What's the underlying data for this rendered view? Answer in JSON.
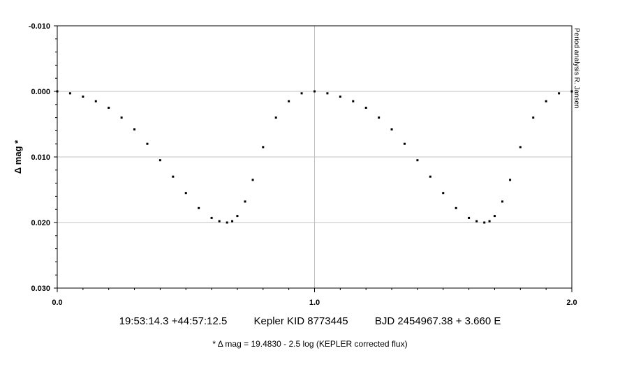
{
  "chart_data": {
    "type": "scatter",
    "ylabel": "Δ mag *",
    "x_ticks": [
      "0.0",
      "1.0",
      "2.0"
    ],
    "y_ticks": [
      "-0.010",
      "0.000",
      "0.010",
      "0.020",
      "0.030"
    ],
    "xlim": [
      0,
      2
    ],
    "ylim": [
      -0.01,
      0.03
    ],
    "y_inverted": true,
    "grid": true,
    "series": [
      {
        "marker_color": "#000000",
        "x": [
          0.0,
          0.05,
          0.1,
          0.15,
          0.2,
          0.25,
          0.3,
          0.35,
          0.4,
          0.45,
          0.5,
          0.55,
          0.6,
          0.63,
          0.66,
          0.68,
          0.7,
          0.73,
          0.76,
          0.8,
          0.85,
          0.9,
          0.95,
          1.0,
          1.05,
          1.1,
          1.15,
          1.2,
          1.25,
          1.3,
          1.35,
          1.4,
          1.45,
          1.5,
          1.55,
          1.6,
          1.63,
          1.66,
          1.68,
          1.7,
          1.73,
          1.76,
          1.8,
          1.85,
          1.9,
          1.95,
          2.0
        ],
        "y": [
          0.0,
          0.0003,
          0.0008,
          0.0015,
          0.0025,
          0.004,
          0.0058,
          0.008,
          0.0105,
          0.013,
          0.0155,
          0.0178,
          0.0193,
          0.0198,
          0.02,
          0.0198,
          0.019,
          0.0168,
          0.0135,
          0.0085,
          0.004,
          0.0015,
          0.0003,
          0.0,
          0.0003,
          0.0008,
          0.0015,
          0.0025,
          0.004,
          0.0058,
          0.008,
          0.0105,
          0.013,
          0.0155,
          0.0178,
          0.0193,
          0.0198,
          0.02,
          0.0198,
          0.019,
          0.0168,
          0.0135,
          0.0085,
          0.004,
          0.0015,
          0.0003,
          0.0
        ]
      }
    ]
  },
  "caption": {
    "coords": "19:53:14.3 +44:57:12.5",
    "target": "Kepler KID 8773445",
    "ephemeris": "BJD 2454967.38 + 3.660 E",
    "note": "* Δ mag = 19.4830 - 2.5 log (KEPLER corrected flux)"
  },
  "credit": "Period analysis  R. Jansen"
}
